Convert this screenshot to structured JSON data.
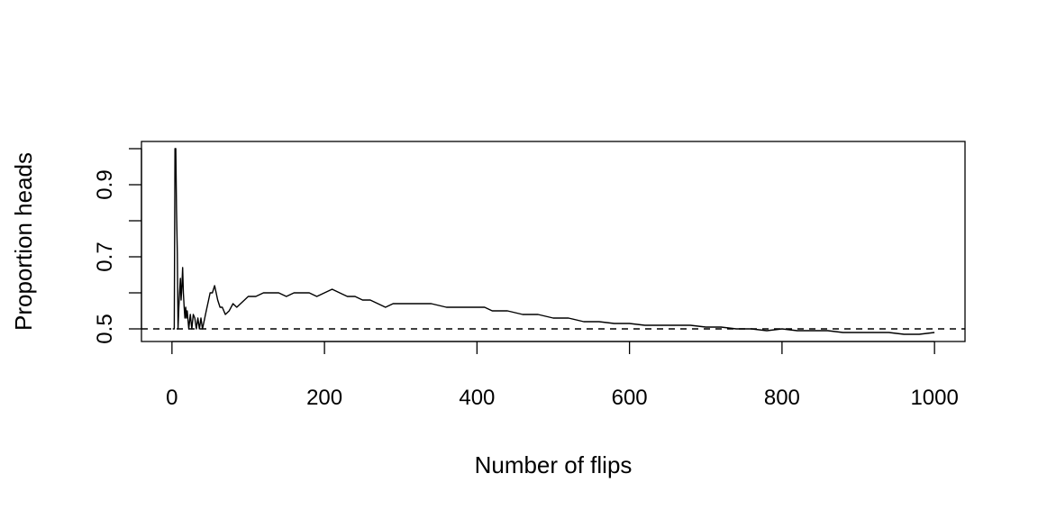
{
  "chart_data": {
    "type": "line",
    "title": "",
    "xlabel": "Number of flips",
    "ylabel": "Proportion heads",
    "xlim": [
      -40,
      1040
    ],
    "ylim": [
      0.465,
      1.02
    ],
    "x_ticks": [
      0,
      200,
      400,
      600,
      800,
      1000
    ],
    "x_tick_labels": [
      "0",
      "200",
      "400",
      "600",
      "800",
      "1000"
    ],
    "y_ticks": [
      0.5,
      0.6,
      0.7,
      0.8,
      0.9,
      1.0
    ],
    "y_tick_labels": [
      "0.5",
      "",
      "0.7",
      "",
      "0.9",
      ""
    ],
    "reference_line": {
      "y": 0.5,
      "style": "dashed"
    },
    "grid": false,
    "legend": "none",
    "series": [
      {
        "x": [
          1,
          2,
          3,
          4,
          5,
          6,
          7,
          8,
          9,
          10,
          11,
          12,
          13,
          14,
          15,
          16,
          17,
          18,
          19,
          20,
          22,
          24,
          26,
          28,
          30,
          32,
          34,
          36,
          38,
          40,
          42,
          45,
          48,
          50,
          53,
          56,
          60,
          63,
          66,
          70,
          75,
          80,
          85,
          90,
          95,
          100,
          110,
          120,
          130,
          140,
          150,
          160,
          170,
          180,
          190,
          200,
          210,
          220,
          230,
          240,
          250,
          260,
          270,
          280,
          290,
          300,
          320,
          340,
          360,
          380,
          400,
          410,
          420,
          440,
          460,
          480,
          500,
          520,
          540,
          560,
          580,
          600,
          620,
          640,
          660,
          680,
          700,
          720,
          740,
          760,
          780,
          800,
          820,
          840,
          860,
          880,
          900,
          920,
          940,
          960,
          980,
          1000
        ],
        "y": [
          0.5,
          0.5,
          0.5,
          1.0,
          1.0,
          0.83,
          0.71,
          0.5,
          0.56,
          0.6,
          0.64,
          0.58,
          0.62,
          0.67,
          0.6,
          0.56,
          0.53,
          0.56,
          0.53,
          0.55,
          0.5,
          0.54,
          0.5,
          0.54,
          0.53,
          0.5,
          0.53,
          0.5,
          0.53,
          0.5,
          0.52,
          0.55,
          0.58,
          0.6,
          0.6,
          0.62,
          0.58,
          0.56,
          0.56,
          0.54,
          0.55,
          0.57,
          0.56,
          0.57,
          0.58,
          0.59,
          0.59,
          0.6,
          0.6,
          0.6,
          0.59,
          0.6,
          0.6,
          0.6,
          0.59,
          0.6,
          0.61,
          0.6,
          0.59,
          0.59,
          0.58,
          0.58,
          0.57,
          0.56,
          0.57,
          0.57,
          0.57,
          0.57,
          0.56,
          0.56,
          0.56,
          0.56,
          0.55,
          0.55,
          0.54,
          0.54,
          0.53,
          0.53,
          0.52,
          0.52,
          0.515,
          0.515,
          0.51,
          0.51,
          0.51,
          0.51,
          0.505,
          0.505,
          0.5,
          0.5,
          0.495,
          0.5,
          0.495,
          0.495,
          0.495,
          0.49,
          0.49,
          0.49,
          0.49,
          0.485,
          0.485,
          0.49
        ]
      }
    ]
  }
}
